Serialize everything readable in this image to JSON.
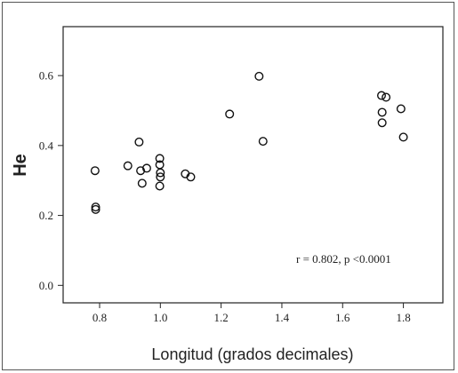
{
  "chart_data": {
    "type": "scatter",
    "xlabel": "Longitud (grados decimales)",
    "ylabel": "He",
    "xlim": [
      0.68,
      1.93
    ],
    "ylim": [
      -0.05,
      0.74
    ],
    "xticks": [
      "0.8",
      "1.0",
      "1.2",
      "1.4",
      "1.6",
      "1.8"
    ],
    "yticks": [
      "0.0",
      "0.2",
      "0.4",
      "0.6"
    ],
    "annotation": "r = 0.802, p <0.0001",
    "grid": false,
    "marker": "open-circle",
    "color": "#111111",
    "points": [
      {
        "x": 0.785,
        "y": 0.328
      },
      {
        "x": 0.787,
        "y": 0.224
      },
      {
        "x": 0.787,
        "y": 0.217
      },
      {
        "x": 0.893,
        "y": 0.342
      },
      {
        "x": 0.93,
        "y": 0.41
      },
      {
        "x": 0.935,
        "y": 0.328
      },
      {
        "x": 0.94,
        "y": 0.292
      },
      {
        "x": 0.955,
        "y": 0.335
      },
      {
        "x": 0.998,
        "y": 0.363
      },
      {
        "x": 0.998,
        "y": 0.345
      },
      {
        "x": 1.0,
        "y": 0.322
      },
      {
        "x": 1.0,
        "y": 0.31
      },
      {
        "x": 0.998,
        "y": 0.284
      },
      {
        "x": 1.082,
        "y": 0.319
      },
      {
        "x": 1.1,
        "y": 0.31
      },
      {
        "x": 1.228,
        "y": 0.49
      },
      {
        "x": 1.325,
        "y": 0.598
      },
      {
        "x": 1.338,
        "y": 0.412
      },
      {
        "x": 1.728,
        "y": 0.543
      },
      {
        "x": 1.743,
        "y": 0.538
      },
      {
        "x": 1.73,
        "y": 0.495
      },
      {
        "x": 1.73,
        "y": 0.465
      },
      {
        "x": 1.792,
        "y": 0.505
      },
      {
        "x": 1.8,
        "y": 0.424
      }
    ]
  }
}
